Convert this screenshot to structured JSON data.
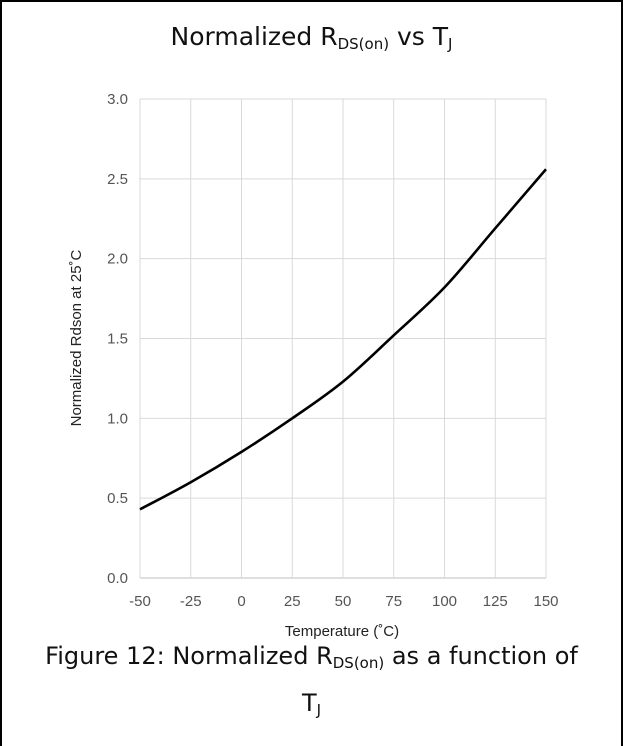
{
  "chart_data": {
    "type": "line",
    "title_main": "Normalized R",
    "title_sub": "DS(on)",
    "title_mid": " vs T",
    "title_sub2": "J",
    "xlabel": "Temperature (˚C)",
    "ylabel": "Normalized Rdson at 25˚C",
    "xlim": [
      -50,
      150
    ],
    "ylim": [
      0,
      3
    ],
    "x_ticks": [
      "-50",
      "-25",
      "0",
      "25",
      "50",
      "75",
      "100",
      "125",
      "150"
    ],
    "y_ticks": [
      "0.0",
      "0.5",
      "1.0",
      "1.5",
      "2.0",
      "2.5",
      "3.0"
    ],
    "grid": true,
    "series": [
      {
        "color": "#000000",
        "x": [
          -50,
          -25,
          0,
          25,
          50,
          75,
          100,
          125,
          150
        ],
        "values": [
          0.43,
          0.6,
          0.79,
          1.0,
          1.23,
          1.52,
          1.82,
          2.19,
          2.56
        ]
      }
    ]
  },
  "caption": {
    "part1": "Figure 12: Normalized R",
    "sub": "DS(on)",
    "part2": " as a function of",
    "line2": "T",
    "line2_sub": "J"
  }
}
